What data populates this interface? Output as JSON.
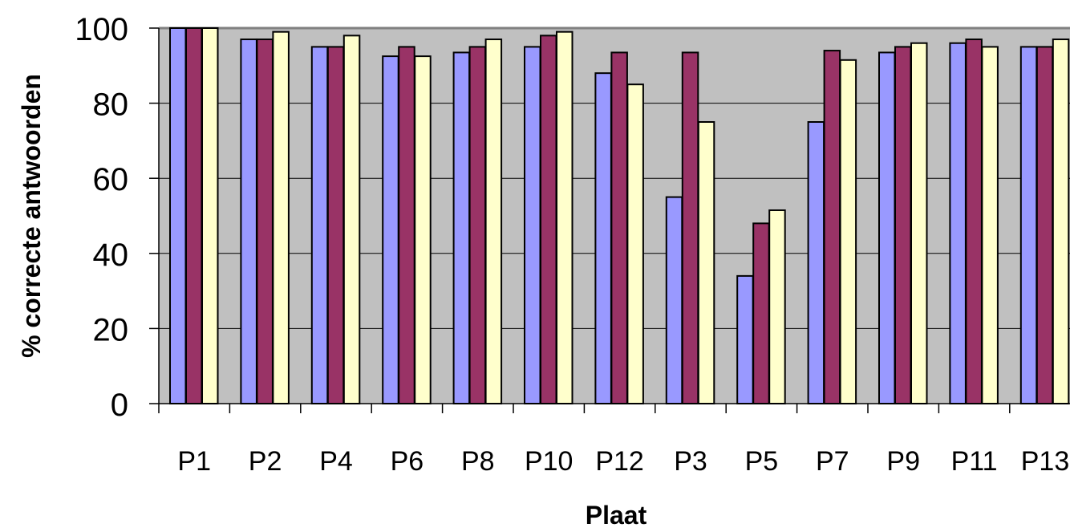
{
  "chart_data": {
    "type": "bar",
    "title": "",
    "xlabel": "Plaat",
    "ylabel": "% correcte antwoorden",
    "ylim": [
      0,
      100
    ],
    "yticks": [
      0,
      20,
      40,
      60,
      80,
      100
    ],
    "grid": true,
    "legend": "none",
    "categories": [
      "P1",
      "P2",
      "P4",
      "P6",
      "P8",
      "P10",
      "P12",
      "P3",
      "P5",
      "P7",
      "P9",
      "P11",
      "P13"
    ],
    "series": [
      {
        "color": "#9999ff",
        "values": [
          100,
          97,
          95,
          92.5,
          93.5,
          95,
          88,
          55,
          34,
          75,
          93.5,
          96,
          95
        ]
      },
      {
        "color": "#993366",
        "values": [
          100,
          97,
          95,
          95,
          95,
          98,
          93.5,
          93.5,
          48,
          94,
          95,
          97,
          95
        ]
      },
      {
        "color": "#ffffcc",
        "values": [
          100,
          99,
          98,
          92.5,
          97,
          99,
          85,
          75,
          51.5,
          91.5,
          96,
          95,
          97
        ]
      }
    ],
    "colors": {
      "plot_bg": "#c0c0c0",
      "grid": "#000000",
      "bar_edge": "#000000"
    }
  }
}
